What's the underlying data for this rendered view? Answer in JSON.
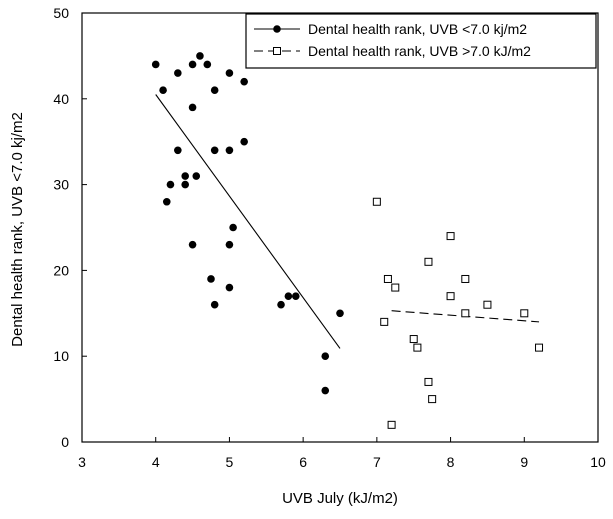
{
  "chart_data": {
    "type": "scatter",
    "title": "",
    "xlabel": "UVB July (kJ/m2)",
    "ylabel": "Dental health rank, UVB <7.0 kj/m2",
    "xlim": [
      3,
      10
    ],
    "ylim": [
      0,
      50
    ],
    "x_ticks": [
      3,
      4,
      5,
      6,
      7,
      8,
      9,
      10
    ],
    "y_ticks": [
      0,
      10,
      20,
      30,
      40,
      50
    ],
    "grid": false,
    "legend_position": "top-right",
    "series": [
      {
        "name": "Dental health rank, UVB <7.0 kj/m2",
        "marker": "filled-circle",
        "line_style": "solid",
        "color": "#000000",
        "points": [
          [
            4.0,
            44
          ],
          [
            4.1,
            41
          ],
          [
            4.15,
            28
          ],
          [
            4.2,
            30
          ],
          [
            4.3,
            43
          ],
          [
            4.3,
            34
          ],
          [
            4.4,
            31
          ],
          [
            4.4,
            30
          ],
          [
            4.5,
            44
          ],
          [
            4.5,
            39
          ],
          [
            4.5,
            23
          ],
          [
            4.55,
            31
          ],
          [
            4.6,
            45
          ],
          [
            4.7,
            44
          ],
          [
            4.75,
            19
          ],
          [
            4.8,
            41
          ],
          [
            4.8,
            34
          ],
          [
            4.8,
            16
          ],
          [
            5.0,
            43
          ],
          [
            5.0,
            34
          ],
          [
            5.0,
            23
          ],
          [
            5.0,
            18
          ],
          [
            5.05,
            25
          ],
          [
            5.2,
            42
          ],
          [
            5.2,
            35
          ],
          [
            5.7,
            16
          ],
          [
            5.8,
            17
          ],
          [
            5.9,
            17
          ],
          [
            6.3,
            10
          ],
          [
            6.3,
            6
          ],
          [
            6.5,
            15
          ]
        ],
        "trend": {
          "x": [
            4.0,
            6.5
          ],
          "y": [
            40.5,
            10.9
          ]
        }
      },
      {
        "name": "Dental health rank, UVB >7.0 kJ/m2",
        "marker": "open-square",
        "line_style": "dashed",
        "color": "#000000",
        "points": [
          [
            7.0,
            28
          ],
          [
            7.1,
            14
          ],
          [
            7.15,
            19
          ],
          [
            7.2,
            2
          ],
          [
            7.25,
            18
          ],
          [
            7.5,
            12
          ],
          [
            7.55,
            11
          ],
          [
            7.7,
            21
          ],
          [
            7.7,
            7
          ],
          [
            7.75,
            5
          ],
          [
            8.0,
            24
          ],
          [
            8.0,
            17
          ],
          [
            8.2,
            19
          ],
          [
            8.2,
            15
          ],
          [
            8.5,
            16
          ],
          [
            9.0,
            15
          ],
          [
            9.2,
            11
          ]
        ],
        "trend": {
          "x": [
            7.2,
            9.2
          ],
          "y": [
            15.3,
            14.0
          ]
        }
      }
    ]
  }
}
